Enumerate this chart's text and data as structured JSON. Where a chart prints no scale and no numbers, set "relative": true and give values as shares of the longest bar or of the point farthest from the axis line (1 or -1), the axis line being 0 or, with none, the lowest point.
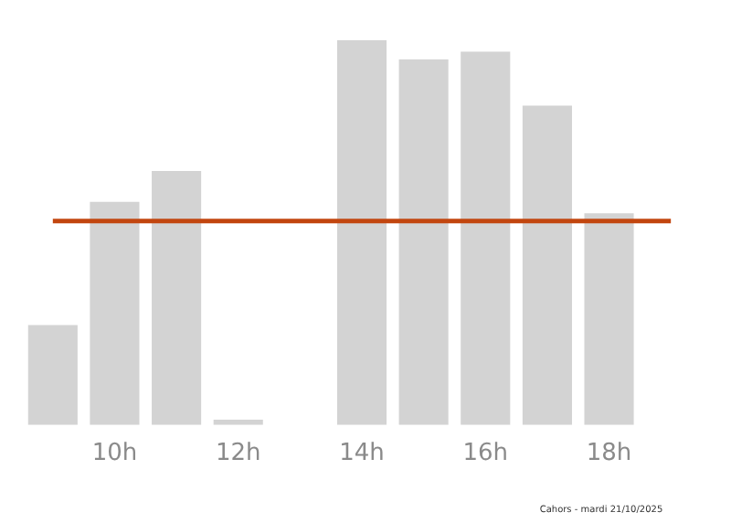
{
  "chart_data": {
    "type": "bar",
    "categories": [
      null,
      "10h",
      null,
      "12h",
      null,
      "14h",
      null,
      "16h",
      null,
      "18h",
      null
    ],
    "values": [
      0.26,
      0.58,
      0.66,
      0.014,
      0,
      1,
      0.95,
      0.97,
      0.83,
      0.55,
      0
    ],
    "color": "#d3d3d3",
    "relative": true,
    "grid": false,
    "legend": false,
    "ref_lines": [
      {
        "axis": "y",
        "value": 0.53,
        "color": "#c2460f"
      }
    ],
    "annotations": [
      "Cahors - mardi 21/10/2025"
    ]
  }
}
